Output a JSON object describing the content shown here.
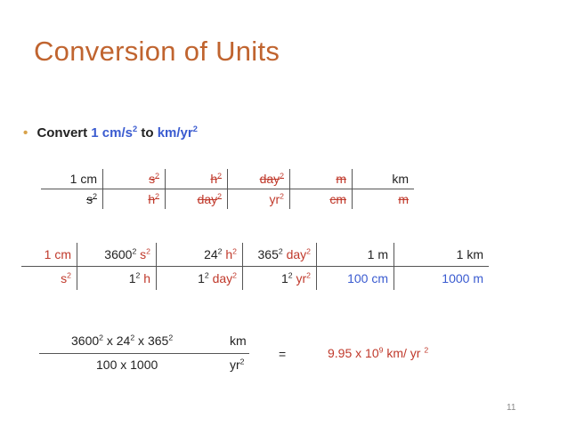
{
  "title": "Conversion of Units",
  "bullet": {
    "prefix": "Convert",
    "value": "1 cm/s",
    "value_exp": "2",
    "mid": "to",
    "target": "km/yr",
    "target_exp": "2"
  },
  "table1": {
    "top": [
      "1 cm",
      "s",
      "h",
      "day",
      "m",
      "km"
    ],
    "top_exp": [
      "",
      "2",
      "2",
      "2",
      "",
      ""
    ],
    "bottom": [
      "s",
      "h",
      "day",
      "yr",
      "cm",
      "m"
    ],
    "bottom_exp": [
      "2",
      "2",
      "2",
      "2",
      "",
      ""
    ]
  },
  "table2": {
    "top": [
      "1 cm",
      "3600",
      " s",
      "24",
      " h",
      "365",
      " day",
      "1 m",
      "1 km"
    ],
    "bottom": [
      "s",
      "1",
      " h",
      "1",
      " day",
      "1",
      " yr",
      "100 cm",
      "1000 m"
    ],
    "exp": "2"
  },
  "calc": {
    "numerator": "3600",
    "numerator_b": " x 24",
    "numerator_c": " x 365",
    "num_unit": "km",
    "denominator": "100 x 1000",
    "den_unit": "yr",
    "equals": "=",
    "result": "9.95 x 10",
    "result_exp": "9",
    "result_tail": " km/ yr ",
    "result_tail_exp": "2"
  },
  "page_number": "11",
  "colors": {
    "title": "#c0642f",
    "accent_blue": "#3a5bd0",
    "accent_red": "#c0392b",
    "bullet": "#d8a24a"
  }
}
